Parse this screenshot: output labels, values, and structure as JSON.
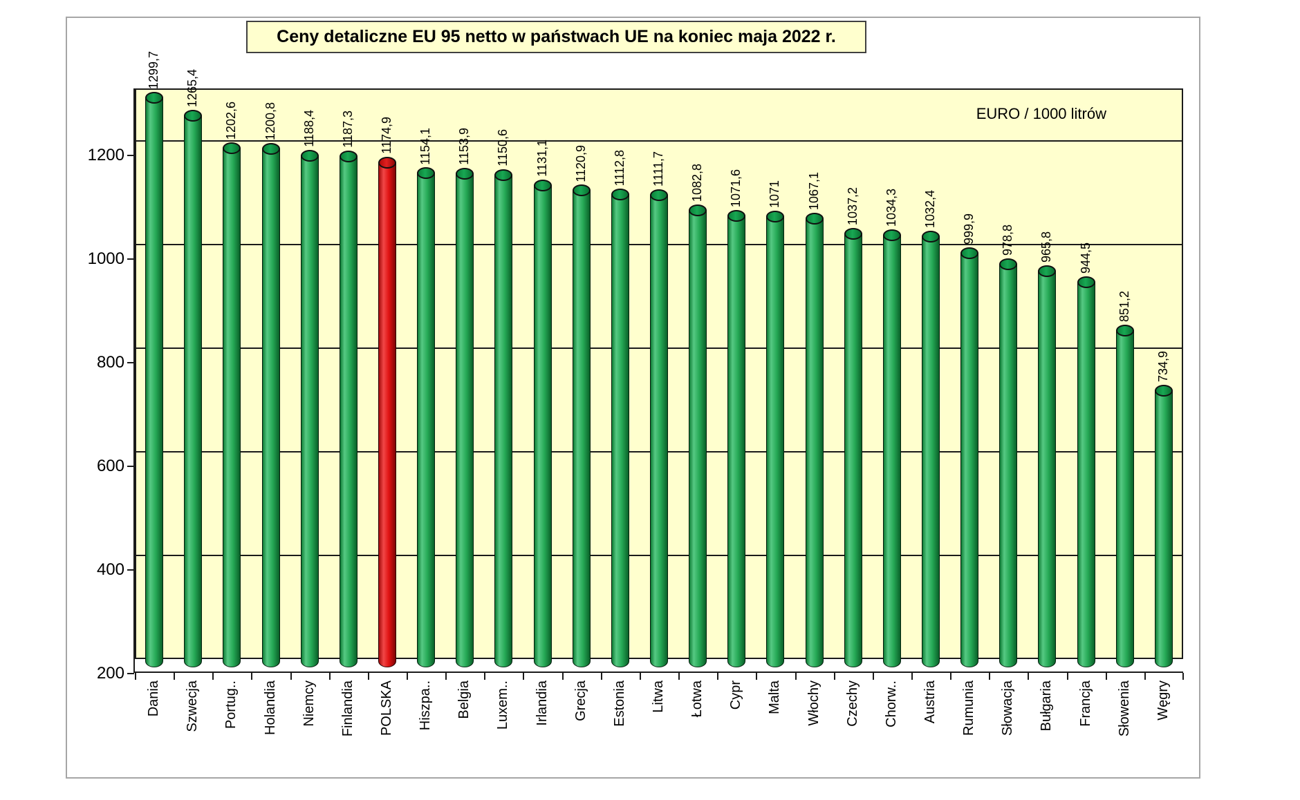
{
  "title": "Ceny detaliczne EU 95 netto w państwach UE na koniec maja 2022 r.",
  "unit_label": "EURO / 1000 litrów",
  "y_axis": {
    "tick_values": [
      200,
      400,
      600,
      800,
      1000,
      1200
    ],
    "tick_labels": [
      "200",
      "400",
      "600",
      "800",
      "1000",
      "1200"
    ],
    "min": 200,
    "max": 1300
  },
  "chart_data": {
    "type": "bar",
    "title": "Ceny detaliczne EU 95 netto w państwach UE na koniec maja 2022 r.",
    "ylabel": "EURO / 1000 litrów",
    "ylim": [
      200,
      1300
    ],
    "grid": true,
    "categories": [
      "Dania",
      "Szwecja",
      "Portug..",
      "Holandia",
      "Niemcy",
      "Finlandia",
      "POLSKA",
      "Hiszpa..",
      "Belgia",
      "Luxem..",
      "Irlandia",
      "Grecja",
      "Estonia",
      "Litwa",
      "Łotwa",
      "Cypr",
      "Malta",
      "Włochy",
      "Czechy",
      "Chorw..",
      "Austria",
      "Rumunia",
      "Słowacja",
      "Bułgaria",
      "Francja",
      "Słowenia",
      "Węgry"
    ],
    "values": [
      1299.7,
      1265.4,
      1202.6,
      1200.8,
      1188.4,
      1187.3,
      1174.9,
      1154.1,
      1153.9,
      1150.6,
      1131.1,
      1120.9,
      1112.8,
      1111.7,
      1082.8,
      1071.6,
      1071,
      1067.1,
      1037.2,
      1034.3,
      1032.4,
      999.9,
      978.8,
      965.8,
      944.5,
      851.2,
      734.9
    ],
    "value_labels": [
      "1299,7",
      "1265,4",
      "1202,6",
      "1200,8",
      "1188,4",
      "1187,3",
      "1174,9",
      "1154,1",
      "1153,9",
      "1150,6",
      "1131,1",
      "1120,9",
      "1112,8",
      "1111,7",
      "1082,8",
      "1071,6",
      "1071",
      "1067,1",
      "1037,2",
      "1034,3",
      "1032,4",
      "999,9",
      "978,8",
      "965,8",
      "944,5",
      "851,2",
      "734,9"
    ],
    "highlight_index": 6,
    "highlight_category": "POLSKA"
  },
  "colors": {
    "page_background": "#ffffff",
    "plot_background": "#ffffce",
    "title_background": "#ffffce",
    "bar_green": "#25a855",
    "bar_green_cap": "#0f8c3e",
    "bar_red": "#e01212",
    "bar_red_cap": "#cf0f0f",
    "gridline": "#1a1a1a",
    "text": "#000000",
    "frame_border": "#a6a6a6"
  }
}
